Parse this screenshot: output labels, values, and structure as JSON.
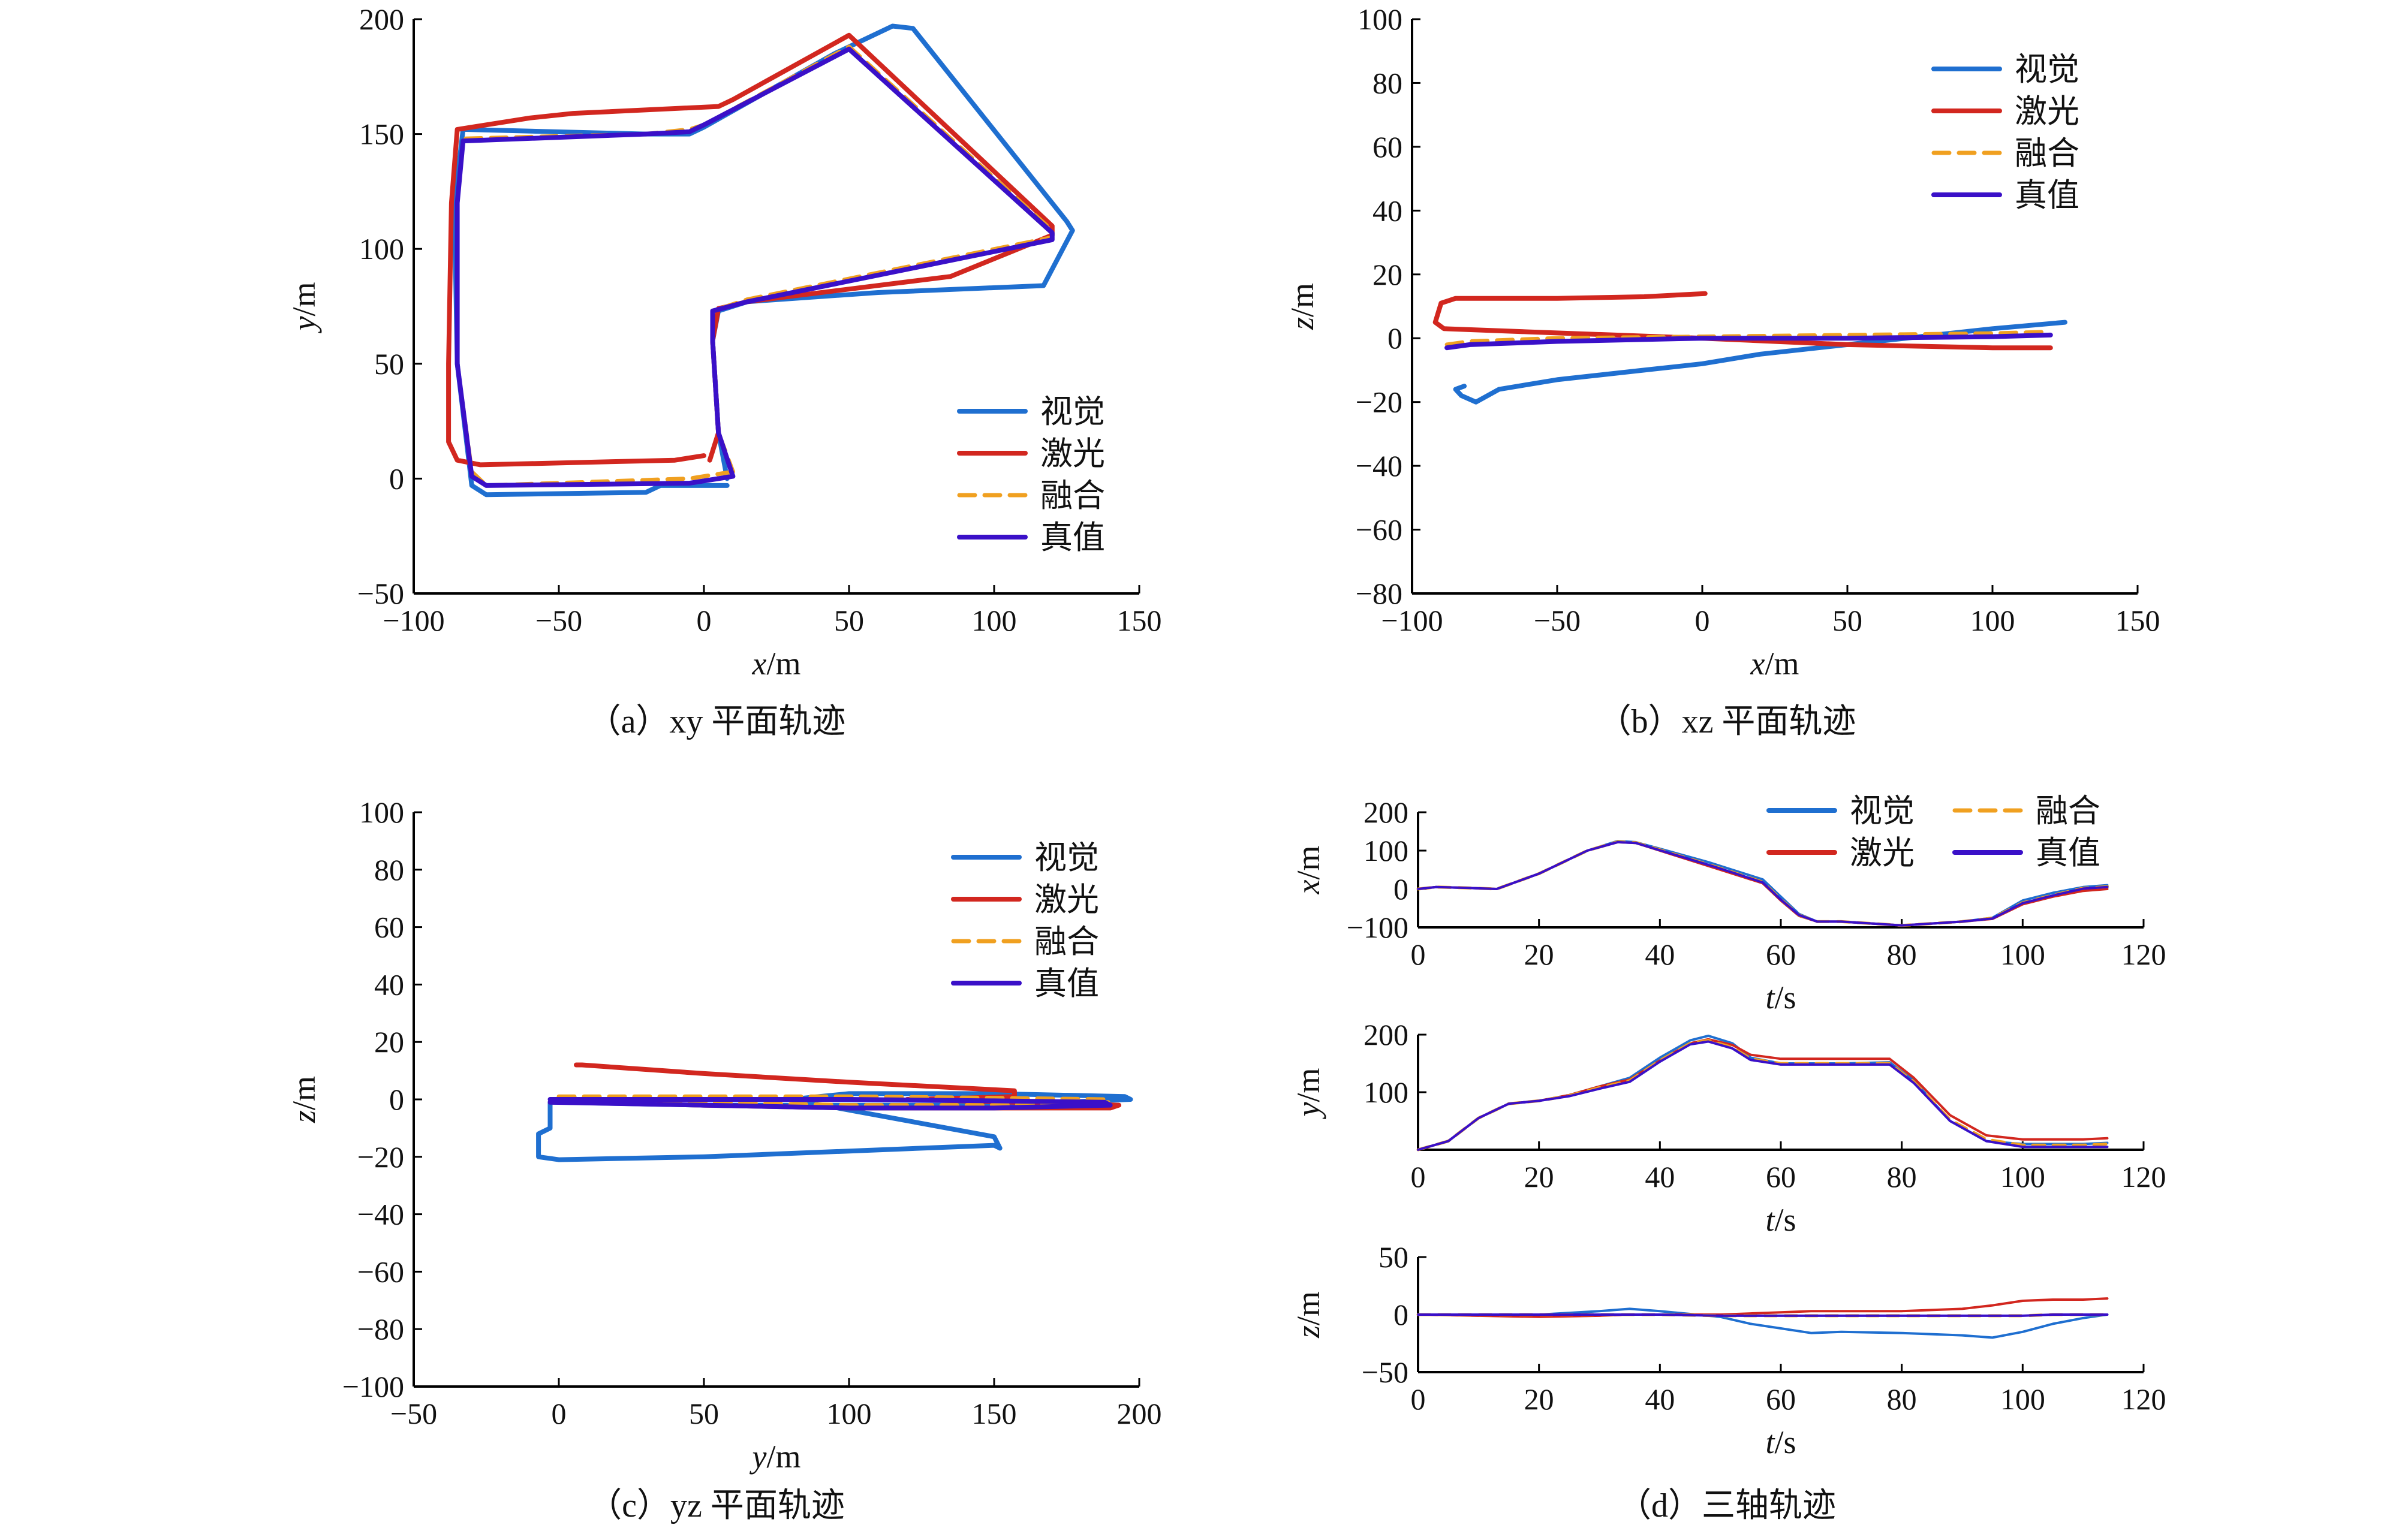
{
  "colors": {
    "visual": "#1f6fd0",
    "laser": "#d2271f",
    "fusion": "#f0a020",
    "truth": "#3a10c8",
    "axis": "#000000"
  },
  "legend_labels": [
    "视觉",
    "激光",
    "融合",
    "真值"
  ],
  "chart_data": [
    {
      "id": "a",
      "type": "line",
      "caption": "（a）xy 平面轨迹",
      "xlabel": "x/m",
      "ylabel": "y/m",
      "xlim": [
        -100,
        150
      ],
      "ylim": [
        -50,
        200
      ],
      "xticks": [
        -100,
        -50,
        0,
        50,
        100,
        150
      ],
      "yticks": [
        -50,
        0,
        50,
        100,
        150,
        200
      ],
      "legend_position": "bottom-right",
      "series": [
        {
          "name": "视觉",
          "key": "visual",
          "x": [
            8,
            -15,
            -20,
            -75,
            -80,
            -85,
            -86,
            -83,
            -20,
            -5,
            0,
            45,
            65,
            72,
            125,
            127,
            117,
            60,
            15,
            5,
            3,
            5,
            8
          ],
          "y": [
            -3,
            -3,
            -6,
            -7,
            -3,
            50,
            120,
            152,
            150,
            150,
            153,
            185,
            197,
            196,
            112,
            108,
            84,
            81,
            77,
            73,
            60,
            20,
            0
          ]
        },
        {
          "name": "激光",
          "key": "laser",
          "x": [
            0,
            -10,
            -77,
            -85,
            -88,
            -88,
            -87,
            -85,
            -60,
            -45,
            5,
            10,
            50,
            120,
            120,
            85,
            15,
            5,
            3,
            5,
            2
          ],
          "y": [
            10,
            8,
            6,
            8,
            16,
            50,
            120,
            152,
            157,
            159,
            162,
            165,
            193,
            110,
            106,
            88,
            77,
            74,
            60,
            20,
            8
          ]
        },
        {
          "name": "融合",
          "key": "fusion",
          "x": [
            10,
            -5,
            -75,
            -80,
            -85,
            -85,
            -83,
            -20,
            -5,
            0,
            50,
            120,
            120,
            15,
            3,
            3,
            5,
            10
          ],
          "y": [
            3,
            0,
            -3,
            3,
            50,
            120,
            148,
            150,
            152,
            154,
            188,
            108,
            105,
            78,
            73,
            60,
            20,
            3
          ]
        },
        {
          "name": "真值",
          "key": "truth",
          "x": [
            10,
            -5,
            -75,
            -80,
            -85,
            -85,
            -83,
            -20,
            -5,
            0,
            50,
            120,
            120,
            15,
            3,
            3,
            5,
            10
          ],
          "y": [
            1,
            -2,
            -3,
            1,
            50,
            120,
            147,
            150,
            151,
            154,
            187,
            107,
            104,
            77,
            73,
            60,
            20,
            1
          ]
        }
      ]
    },
    {
      "id": "b",
      "type": "line",
      "caption": "（b）xz 平面轨迹",
      "xlabel": "x/m",
      "ylabel": "z/m",
      "xlim": [
        -100,
        150
      ],
      "ylim": [
        -80,
        100
      ],
      "xticks": [
        -100,
        -50,
        0,
        50,
        100,
        150
      ],
      "yticks": [
        -80,
        -60,
        -40,
        -20,
        0,
        20,
        40,
        60,
        80,
        100
      ],
      "legend_position": "top-right",
      "series": [
        {
          "name": "视觉",
          "key": "visual",
          "x": [
            125,
            100,
            50,
            20,
            0,
            -20,
            -50,
            -70,
            -78,
            -83,
            -85,
            -82
          ],
          "y": [
            5,
            3,
            -2,
            -5,
            -8,
            -10,
            -13,
            -16,
            -20,
            -18,
            -16,
            -15
          ]
        },
        {
          "name": "激光",
          "key": "laser",
          "x": [
            1,
            -20,
            -50,
            -70,
            -85,
            -90,
            -92,
            -89,
            -60,
            -30,
            0,
            50,
            100,
            120
          ],
          "y": [
            14,
            13,
            12.5,
            12.5,
            12.5,
            11,
            5,
            3,
            2,
            1,
            0,
            -2,
            -3,
            -3
          ]
        },
        {
          "name": "融合",
          "key": "fusion",
          "x": [
            -88,
            -80,
            -50,
            0,
            50,
            100,
            120
          ],
          "y": [
            -2,
            -1,
            0,
            0.5,
            1,
            1.5,
            2
          ]
        },
        {
          "name": "真值",
          "key": "truth",
          "x": [
            -88,
            -80,
            -50,
            0,
            50,
            100,
            120
          ],
          "y": [
            -3,
            -2,
            -1,
            0,
            0,
            0.5,
            1
          ]
        }
      ]
    },
    {
      "id": "c",
      "type": "line",
      "caption": "（c）yz 平面轨迹",
      "xlabel": "y/m",
      "ylabel": "z/m",
      "xlim": [
        -50,
        200
      ],
      "ylim": [
        -100,
        100
      ],
      "xticks": [
        -50,
        0,
        50,
        100,
        150,
        200
      ],
      "yticks": [
        -100,
        -80,
        -60,
        -40,
        -20,
        0,
        20,
        40,
        60,
        80,
        100
      ],
      "legend_position": "top-right",
      "series": [
        {
          "name": "视觉",
          "key": "visual",
          "x": [
            -3,
            -3,
            -7,
            -7,
            0,
            50,
            100,
            150,
            152,
            150,
            80,
            100,
            150,
            195,
            197,
            150,
            50,
            0,
            -3
          ],
          "y": [
            -1,
            -10,
            -12,
            -20,
            -21,
            -20,
            -18,
            -16,
            -17,
            -13,
            0,
            2,
            2,
            1,
            0,
            -2,
            -2,
            -1,
            -1
          ]
        },
        {
          "name": "激光",
          "key": "laser",
          "x": [
            6,
            8,
            50,
            100,
            157,
            157,
            140,
            120,
            193,
            190,
            100,
            50,
            8,
            6
          ],
          "y": [
            12,
            12,
            9,
            6,
            3,
            1,
            0.5,
            0,
            -2,
            -3,
            -3,
            -2,
            -1,
            -1
          ]
        },
        {
          "name": "融合",
          "key": "fusion",
          "x": [
            0,
            50,
            100,
            150,
            188,
            190,
            150,
            100,
            50,
            0
          ],
          "y": [
            1,
            1,
            1,
            0.5,
            0,
            -1,
            -2,
            -2,
            -1,
            0
          ]
        },
        {
          "name": "真值",
          "key": "truth",
          "x": [
            -3,
            50,
            100,
            150,
            188,
            190,
            150,
            100,
            50,
            -3
          ],
          "y": [
            0,
            0,
            0,
            -0.5,
            -1,
            -2,
            -3,
            -3,
            -2,
            -1
          ]
        }
      ]
    },
    {
      "id": "d",
      "type": "line",
      "caption": "（d）三轴轨迹",
      "subplots": [
        {
          "ylabel": "x/m",
          "xlabel": "t/s",
          "xlim": [
            0,
            120
          ],
          "ylim": [
            -100,
            200
          ],
          "xticks": [
            0,
            20,
            40,
            60,
            80,
            100,
            120
          ],
          "yticks": [
            -100,
            0,
            100,
            200
          ],
          "t": [
            0,
            3,
            8,
            13,
            20,
            28,
            33,
            36,
            40,
            48,
            52,
            57,
            60,
            63,
            66,
            70,
            80,
            90,
            95,
            100,
            105,
            110,
            114
          ],
          "series": [
            {
              "name": "视觉",
              "key": "visual",
              "values": [
                0,
                5,
                3,
                0,
                40,
                100,
                125,
                122,
                105,
                70,
                50,
                25,
                -20,
                -65,
                -85,
                -85,
                -95,
                -85,
                -75,
                -30,
                -10,
                5,
                10
              ]
            },
            {
              "name": "激光",
              "key": "laser",
              "values": [
                0,
                5,
                3,
                0,
                40,
                100,
                122,
                120,
                100,
                60,
                40,
                15,
                -30,
                -70,
                -85,
                -85,
                -95,
                -85,
                -78,
                -40,
                -20,
                -5,
                0
              ]
            },
            {
              "name": "融合",
              "key": "fusion",
              "values": [
                0,
                5,
                3,
                0,
                40,
                100,
                123,
                121,
                102,
                64,
                44,
                18,
                -27,
                -68,
                -85,
                -85,
                -95,
                -85,
                -76,
                -36,
                -16,
                2,
                6
              ]
            },
            {
              "name": "真值",
              "key": "truth",
              "values": [
                0,
                5,
                3,
                0,
                40,
                100,
                122,
                120,
                101,
                63,
                43,
                17,
                -28,
                -68,
                -85,
                -85,
                -95,
                -85,
                -77,
                -37,
                -17,
                1,
                5
              ]
            }
          ]
        },
        {
          "ylabel": "y/m",
          "xlabel": "t/s",
          "xlim": [
            0,
            120
          ],
          "ylim": [
            0,
            200
          ],
          "xticks": [
            0,
            20,
            40,
            60,
            80,
            100,
            120
          ],
          "yticks": [
            100,
            200
          ],
          "t": [
            0,
            5,
            10,
            15,
            20,
            25,
            30,
            35,
            40,
            45,
            48,
            52,
            55,
            60,
            70,
            78,
            82,
            88,
            94,
            100,
            110,
            114
          ],
          "series": [
            {
              "name": "视觉",
              "key": "visual",
              "values": [
                0,
                15,
                55,
                80,
                85,
                95,
                110,
                125,
                160,
                190,
                198,
                185,
                160,
                150,
                150,
                152,
                120,
                50,
                15,
                10,
                10,
                12
              ]
            },
            {
              "name": "激光",
              "key": "laser",
              "values": [
                0,
                15,
                55,
                80,
                85,
                95,
                110,
                122,
                155,
                185,
                192,
                182,
                165,
                158,
                158,
                158,
                125,
                60,
                25,
                18,
                18,
                20
              ]
            },
            {
              "name": "融合",
              "key": "fusion",
              "values": [
                0,
                15,
                55,
                80,
                85,
                94,
                108,
                120,
                155,
                185,
                190,
                178,
                158,
                150,
                150,
                150,
                118,
                52,
                18,
                8,
                8,
                10
              ]
            },
            {
              "name": "真值",
              "key": "truth",
              "values": [
                0,
                15,
                55,
                80,
                85,
                93,
                106,
                118,
                153,
                183,
                188,
                176,
                156,
                148,
                148,
                148,
                116,
                50,
                15,
                5,
                5,
                5
              ]
            }
          ]
        },
        {
          "ylabel": "z/m",
          "xlabel": "t/s",
          "xlim": [
            0,
            120
          ],
          "ylim": [
            -50,
            50
          ],
          "xticks": [
            0,
            20,
            40,
            60,
            80,
            100,
            120
          ],
          "yticks": [
            -50,
            0,
            50
          ],
          "t": [
            0,
            10,
            20,
            30,
            35,
            40,
            50,
            55,
            60,
            65,
            70,
            80,
            90,
            95,
            100,
            105,
            110,
            114
          ],
          "series": [
            {
              "name": "视觉",
              "key": "visual",
              "values": [
                0,
                0,
                0,
                3,
                5,
                3,
                -2,
                -8,
                -12,
                -16,
                -15,
                -16,
                -18,
                -20,
                -15,
                -8,
                -3,
                0
              ]
            },
            {
              "name": "激光",
              "key": "laser",
              "values": [
                0,
                -1,
                -2,
                -1,
                0,
                0,
                0,
                1,
                2,
                3,
                3,
                3,
                5,
                8,
                12,
                13,
                13,
                14
              ]
            },
            {
              "name": "融合",
              "key": "fusion",
              "values": [
                0,
                0,
                0,
                0,
                0,
                0,
                -1,
                -1,
                -1,
                -1,
                -1,
                -1,
                -1,
                -1,
                -1,
                0,
                0,
                0
              ]
            },
            {
              "name": "真值",
              "key": "truth",
              "values": [
                0,
                0,
                0,
                0,
                0,
                0,
                -1,
                -1,
                -1,
                -1,
                -1,
                -1,
                -1,
                -1,
                -1,
                0,
                0,
                0
              ]
            }
          ]
        }
      ]
    }
  ]
}
